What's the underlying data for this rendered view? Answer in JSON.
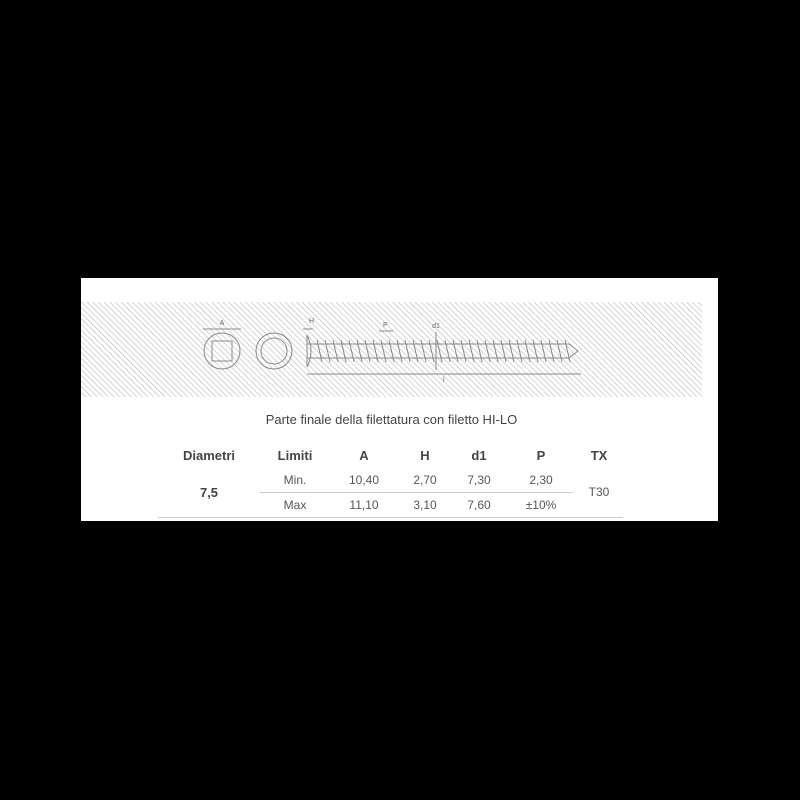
{
  "diagram": {
    "labels": {
      "head_width": "A",
      "head_height": "H",
      "pitch": "P",
      "thread_diameter": "d1",
      "length": "l"
    }
  },
  "caption": "Parte finale della filettatura con filetto HI-LO",
  "table": {
    "headers": [
      "Diametri",
      "Limiti",
      "A",
      "H",
      "d1",
      "P",
      "TX"
    ],
    "diameter": "7,5",
    "tx": "T30",
    "rows": [
      {
        "limit": "Min.",
        "A": "10,40",
        "H": "2,70",
        "d1": "7,30",
        "P": "2,30"
      },
      {
        "limit": "Max",
        "A": "11,10",
        "H": "3,10",
        "d1": "7,60",
        "P": "±10%"
      }
    ]
  }
}
